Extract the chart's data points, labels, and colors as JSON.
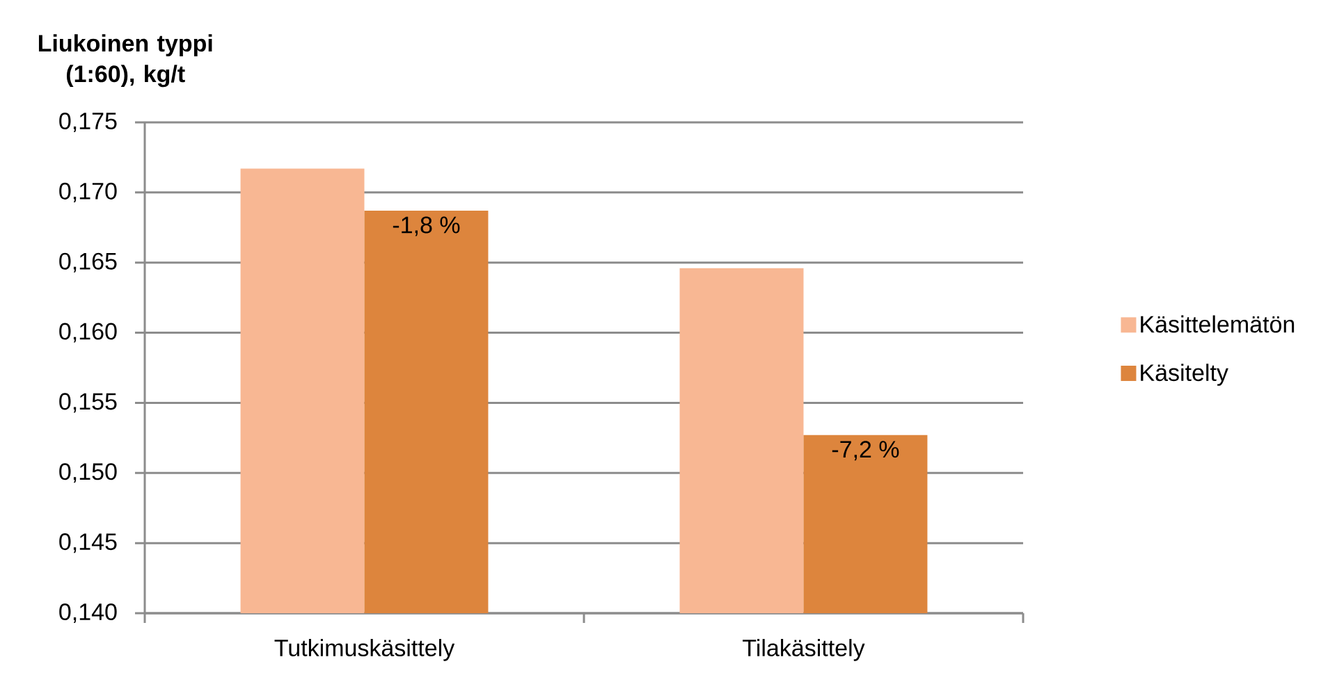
{
  "chart_data": {
    "type": "bar",
    "ylabel": "Liukoinen typpi (1:60), kg/t",
    "categories": [
      "Tutkimuskäsittely",
      "Tilakäsittely"
    ],
    "series": [
      {
        "name": "Käsittelemätön",
        "color": "#f8b793",
        "values": [
          0.1717,
          0.1646
        ]
      },
      {
        "name": "Käsitelty",
        "color": "#dd853d",
        "values": [
          0.1687,
          0.1527
        ]
      }
    ],
    "ylim": [
      0.14,
      0.175
    ],
    "yticks": [
      {
        "value": 0.14,
        "label": "0,140"
      },
      {
        "value": 0.145,
        "label": "0,145"
      },
      {
        "value": 0.15,
        "label": "0,150"
      },
      {
        "value": 0.155,
        "label": "0,155"
      },
      {
        "value": 0.16,
        "label": "0,160"
      },
      {
        "value": 0.165,
        "label": "0,165"
      },
      {
        "value": 0.17,
        "label": "0,170"
      },
      {
        "value": 0.175,
        "label": "0,175"
      }
    ],
    "grid": "y",
    "legend": "right",
    "annotations": [
      {
        "text": "-1,8 %",
        "x": "Tutkimuskäsittely",
        "y": 0.1687
      },
      {
        "text": "-7,2 %",
        "x": "Tilakäsittely",
        "y": 0.1527
      }
    ]
  }
}
